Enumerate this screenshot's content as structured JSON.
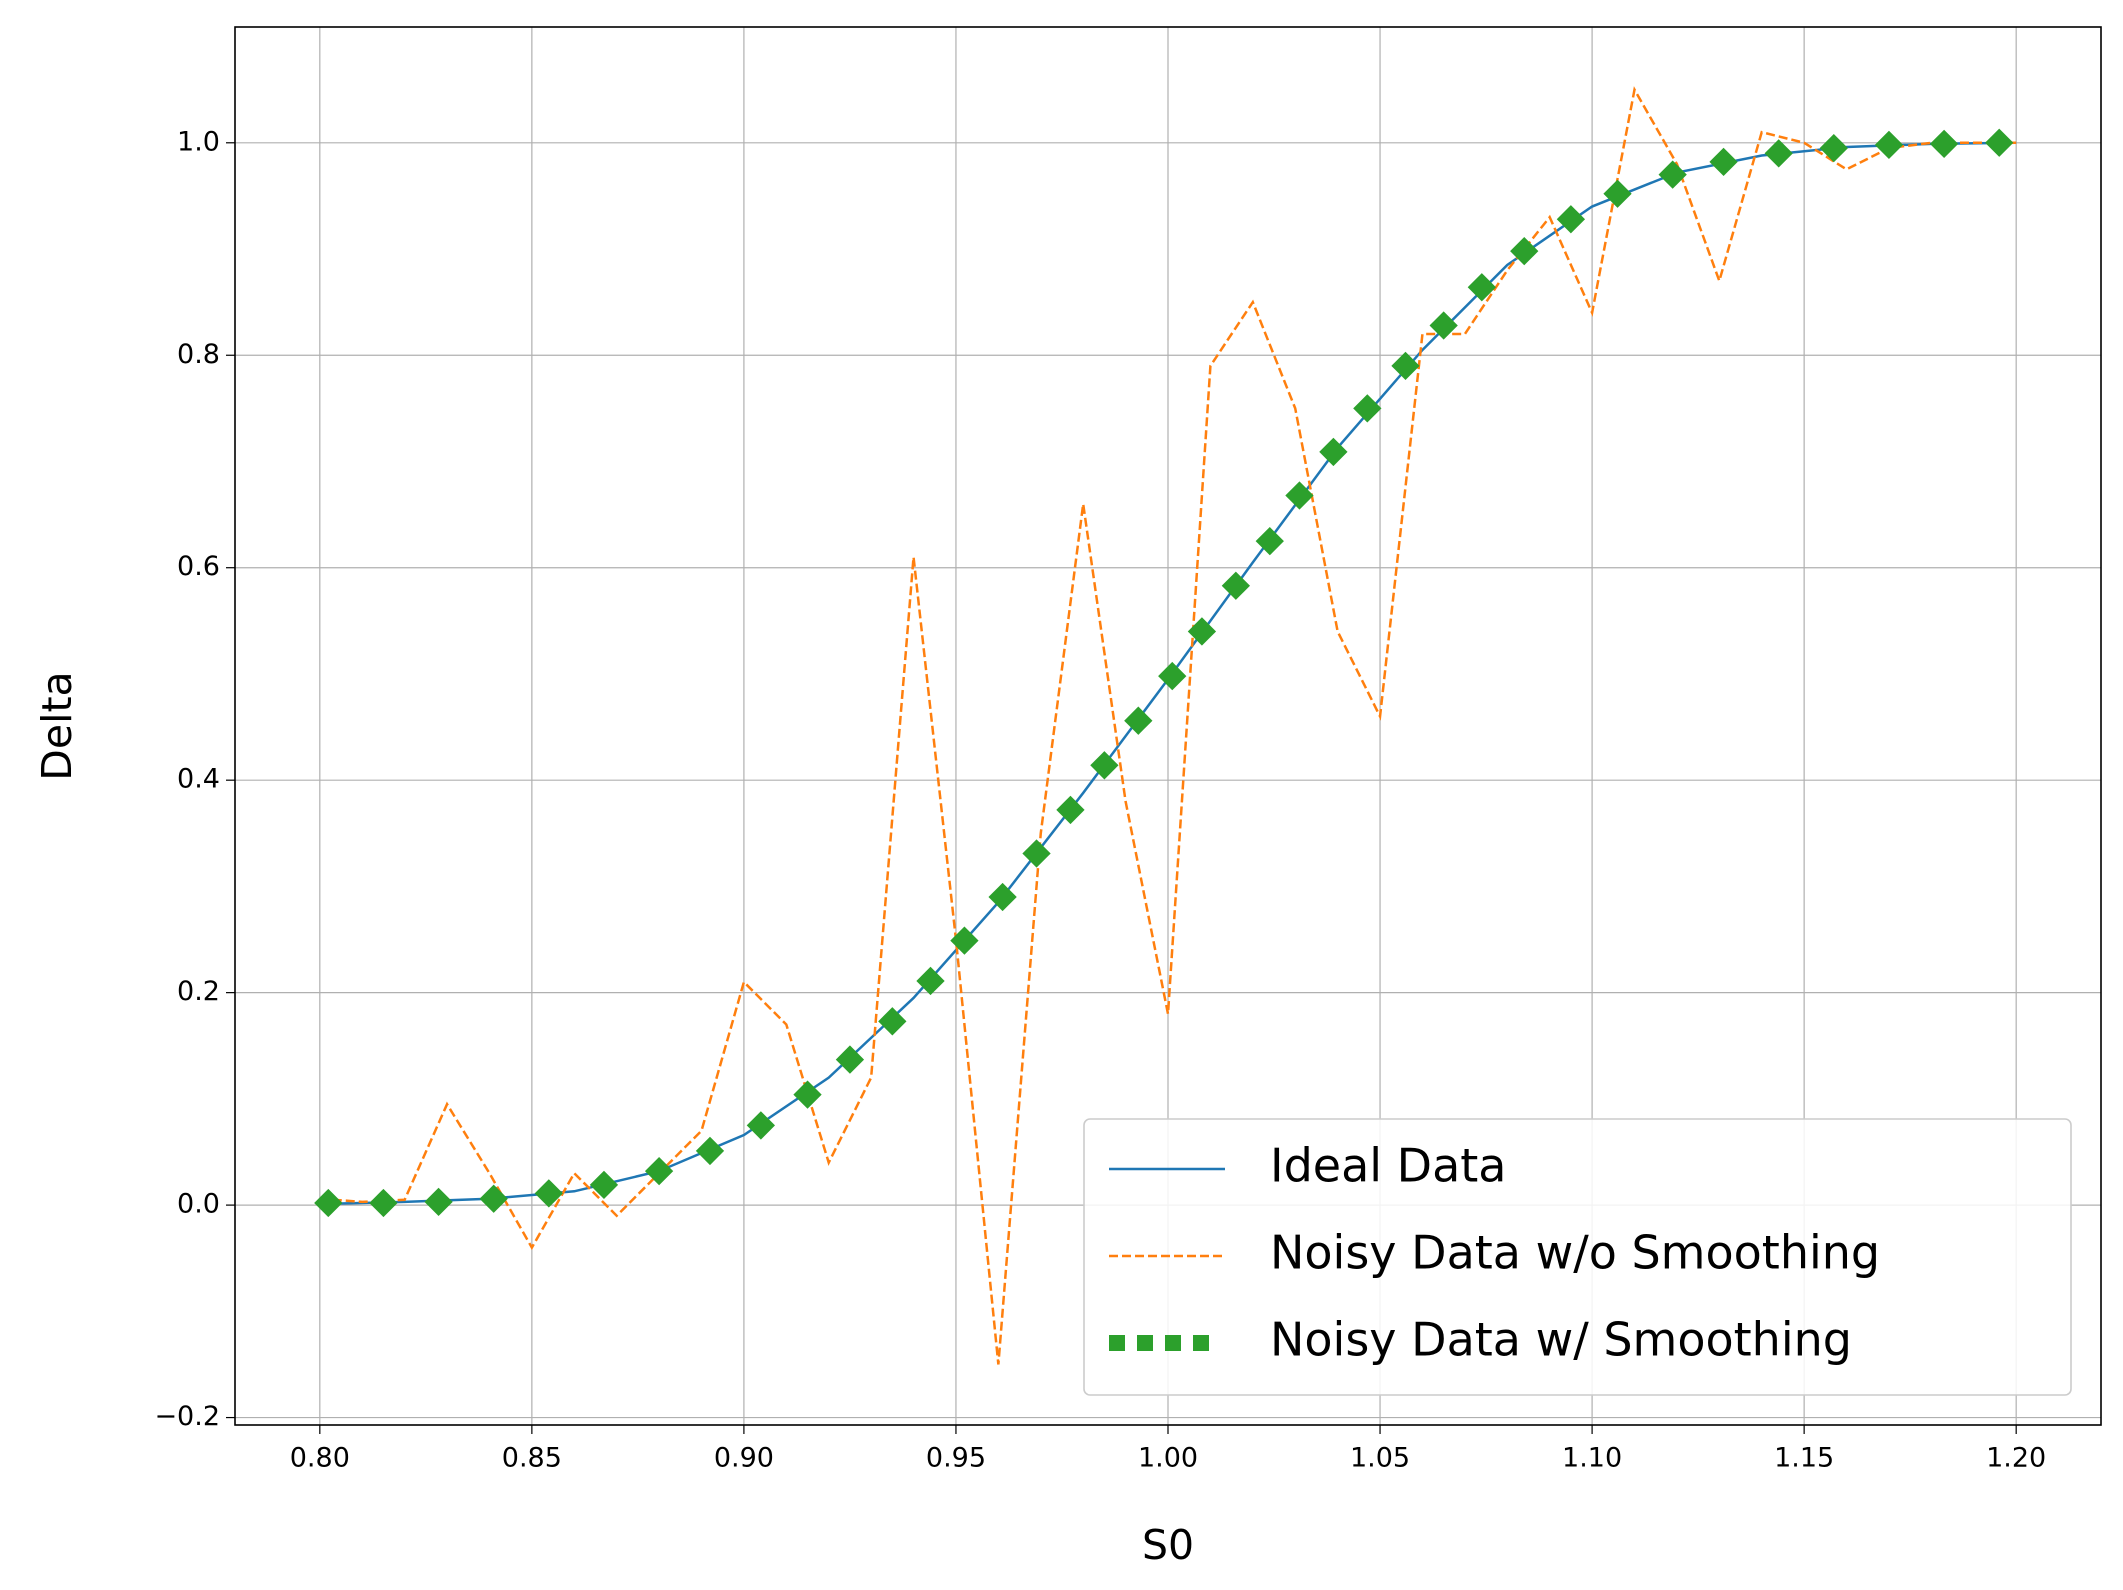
{
  "chart_data": {
    "type": "line",
    "x_label": "S0",
    "y_label": "Delta",
    "xlim": [
      0.78,
      1.22
    ],
    "ylim": [
      -0.207,
      1.109
    ],
    "xticks": [
      {
        "value": 0.8,
        "label": "0.80"
      },
      {
        "value": 0.85,
        "label": "0.85"
      },
      {
        "value": 0.9,
        "label": "0.90"
      },
      {
        "value": 0.95,
        "label": "0.95"
      },
      {
        "value": 1.0,
        "label": "1.00"
      },
      {
        "value": 1.05,
        "label": "1.05"
      },
      {
        "value": 1.1,
        "label": "1.10"
      },
      {
        "value": 1.15,
        "label": "1.15"
      },
      {
        "value": 1.2,
        "label": "1.20"
      }
    ],
    "yticks": [
      {
        "value": -0.2,
        "label": "−0.2"
      },
      {
        "value": 0,
        "label": "0.0"
      },
      0.2,
      0.4,
      0.6,
      0.8,
      {
        "value": 1,
        "label": "1.0"
      }
    ],
    "grid": true,
    "legend": "lower right",
    "series": [
      {
        "name": "Ideal Data",
        "color": "#1f77b4",
        "style": "solid",
        "x": [
          0.8,
          0.82,
          0.84,
          0.86,
          0.88,
          0.9,
          0.92,
          0.94,
          0.96,
          0.98,
          1.0,
          1.02,
          1.04,
          1.06,
          1.08,
          1.1,
          1.12,
          1.14,
          1.16,
          1.18,
          1.2
        ],
        "values": [
          0.001,
          0.003,
          0.006,
          0.013,
          0.032,
          0.066,
          0.12,
          0.195,
          0.285,
          0.388,
          0.495,
          0.605,
          0.713,
          0.805,
          0.885,
          0.94,
          0.972,
          0.988,
          0.996,
          0.999,
          1.0
        ]
      },
      {
        "name": "Noisy Data w/o Smoothing",
        "color": "#ff7f0e",
        "style": "dashed",
        "x": [
          0.8,
          0.81,
          0.82,
          0.83,
          0.84,
          0.85,
          0.86,
          0.87,
          0.88,
          0.89,
          0.9,
          0.91,
          0.92,
          0.93,
          0.94,
          0.95,
          0.96,
          0.97,
          0.98,
          0.99,
          1.0,
          1.01,
          1.02,
          1.03,
          1.04,
          1.05,
          1.06,
          1.07,
          1.08,
          1.09,
          1.1,
          1.11,
          1.12,
          1.13,
          1.14,
          1.15,
          1.16,
          1.17,
          1.18,
          1.19,
          1.2
        ],
        "values": [
          0.006,
          0.003,
          0.005,
          0.095,
          0.03,
          -0.04,
          0.03,
          -0.01,
          0.03,
          0.07,
          0.21,
          0.17,
          0.04,
          0.12,
          0.61,
          0.25,
          -0.15,
          0.35,
          0.66,
          0.38,
          0.18,
          0.79,
          0.85,
          0.75,
          0.54,
          0.46,
          0.82,
          0.82,
          0.88,
          0.93,
          0.84,
          1.05,
          0.98,
          0.87,
          1.01,
          1.0,
          0.975,
          0.995,
          1.0,
          1.0,
          1.0
        ]
      },
      {
        "name": "Noisy Data w/ Smoothing",
        "color": "#2ca02c",
        "style": "dotted-square",
        "x": [
          0.802,
          0.815,
          0.828,
          0.841,
          0.854,
          0.867,
          0.88,
          0.892,
          0.904,
          0.915,
          0.925,
          0.935,
          0.944,
          0.952,
          0.961,
          0.969,
          0.977,
          0.985,
          0.993,
          1.001,
          1.008,
          1.016,
          1.024,
          1.031,
          1.039,
          1.047,
          1.056,
          1.065,
          1.074,
          1.084,
          1.095,
          1.106,
          1.119,
          1.131,
          1.144,
          1.157,
          1.17,
          1.183,
          1.196
        ],
        "values": [
          0.002,
          0.002,
          0.003,
          0.006,
          0.011,
          0.019,
          0.032,
          0.051,
          0.075,
          0.104,
          0.137,
          0.173,
          0.211,
          0.249,
          0.29,
          0.331,
          0.372,
          0.414,
          0.456,
          0.498,
          0.54,
          0.583,
          0.625,
          0.668,
          0.709,
          0.75,
          0.79,
          0.828,
          0.864,
          0.898,
          0.928,
          0.952,
          0.97,
          0.982,
          0.99,
          0.995,
          0.998,
          0.999,
          1.0
        ]
      }
    ]
  }
}
